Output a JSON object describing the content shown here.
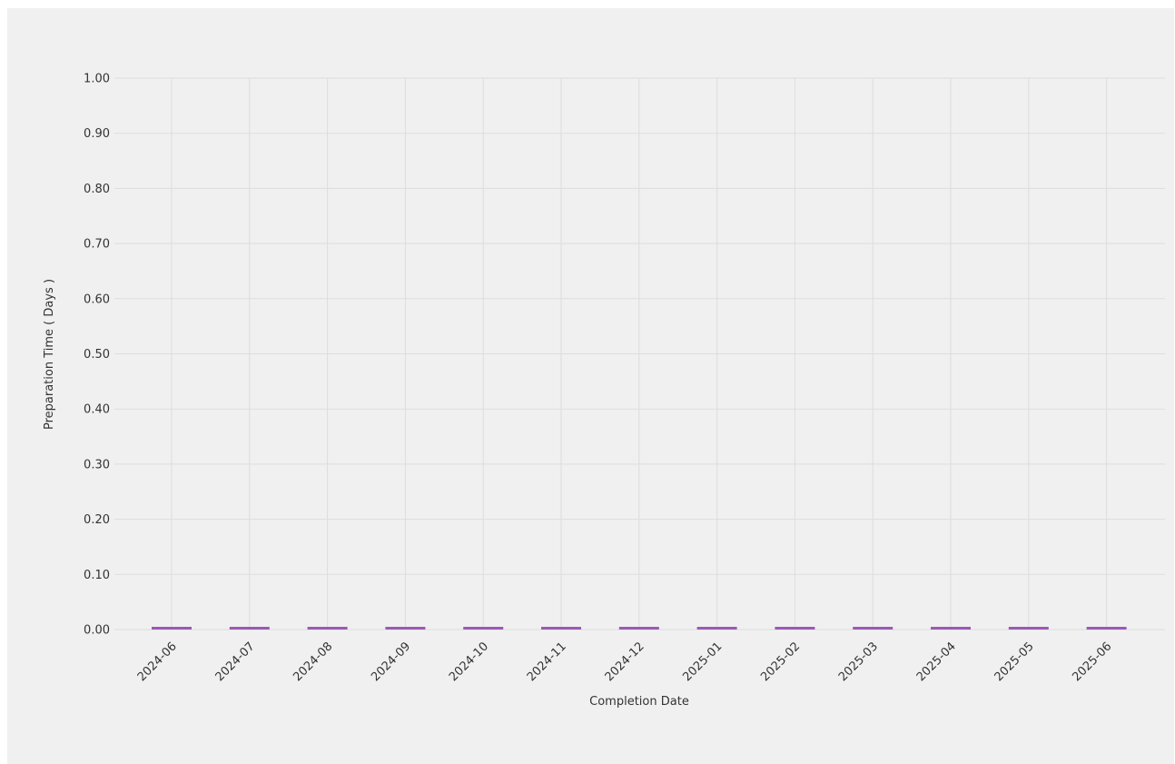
{
  "chart_data": {
    "type": "bar",
    "xlabel": "Completion Date",
    "ylabel": "Preparation Time ( Days )",
    "categories": [
      "2024-06",
      "2024-07",
      "2024-08",
      "2024-09",
      "2024-10",
      "2024-11",
      "2024-12",
      "2025-01",
      "2025-02",
      "2025-03",
      "2025-04",
      "2025-05",
      "2025-06"
    ],
    "series": [
      {
        "values": [
          0,
          0,
          0,
          0,
          0,
          0,
          0,
          0,
          0,
          0,
          0,
          0,
          0
        ]
      }
    ],
    "ylim": [
      0,
      1
    ],
    "yticks": [
      "0.00",
      "0.10",
      "0.20",
      "0.30",
      "0.40",
      "0.50",
      "0.60",
      "0.70",
      "0.80",
      "0.90",
      "1.00"
    ],
    "grid": true,
    "colors": {
      "bar": "#9b59b6",
      "background": "#f0f0f0",
      "grid": "#dddddd"
    }
  }
}
